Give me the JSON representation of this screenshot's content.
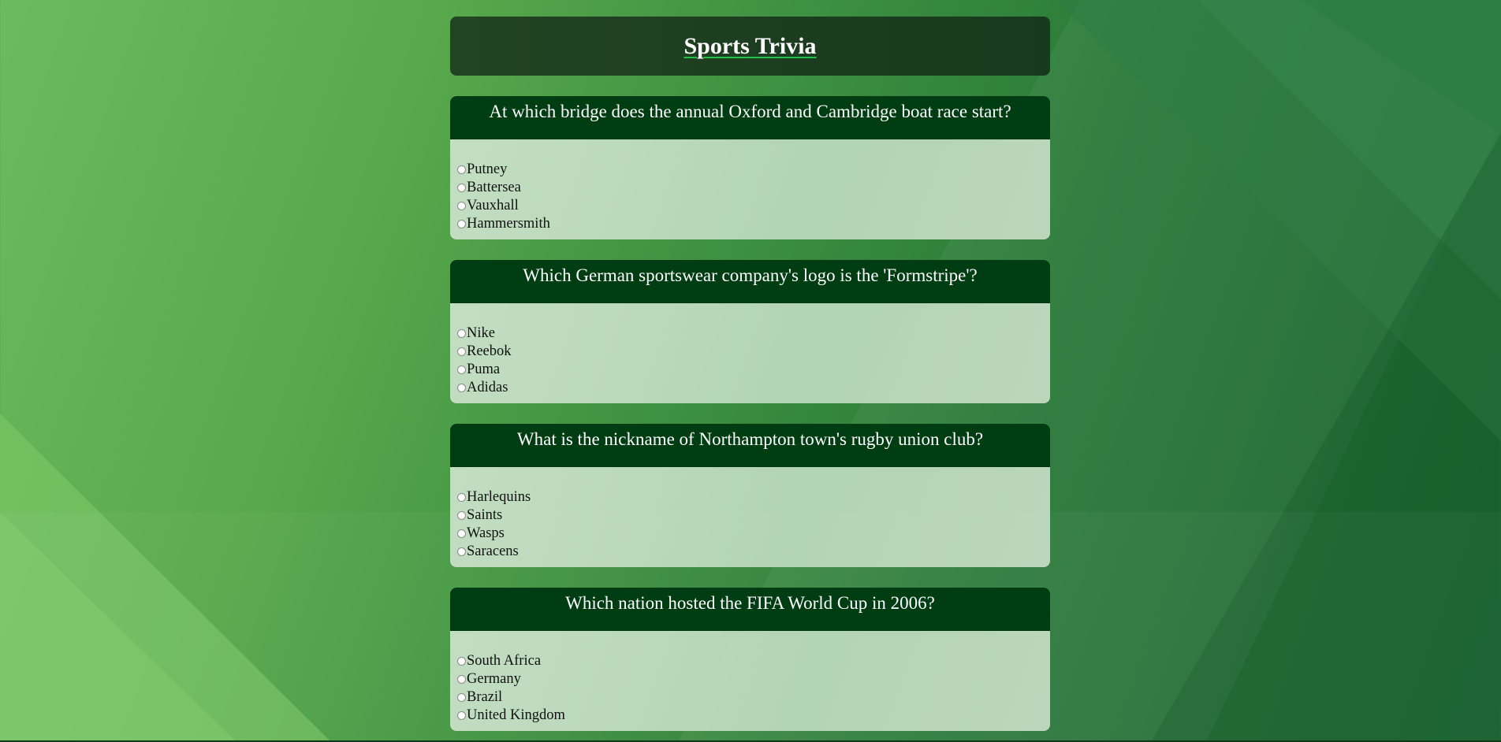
{
  "page": {
    "title": "Sports Trivia"
  },
  "questions": [
    {
      "text": "At which bridge does the annual Oxford and Cambridge boat race start?",
      "options": [
        "Putney",
        "Battersea",
        "Vauxhall",
        "Hammersmith"
      ]
    },
    {
      "text": "Which German sportswear company's logo is the 'Formstripe'?",
      "options": [
        "Nike",
        "Reebok",
        "Puma",
        "Adidas"
      ]
    },
    {
      "text": "What is the nickname of Northampton town's rugby union club?",
      "options": [
        "Harlequins",
        "Saints",
        "Wasps",
        "Saracens"
      ]
    },
    {
      "text": "Which nation hosted the FIFA World Cup in 2006?",
      "options": [
        "South Africa",
        "Germany",
        "Brazil",
        "United Kingdom"
      ]
    }
  ],
  "colors": {
    "header_bg": "#003d12",
    "title_underline": "#22c04a",
    "card_bg": "#c4dec4"
  }
}
